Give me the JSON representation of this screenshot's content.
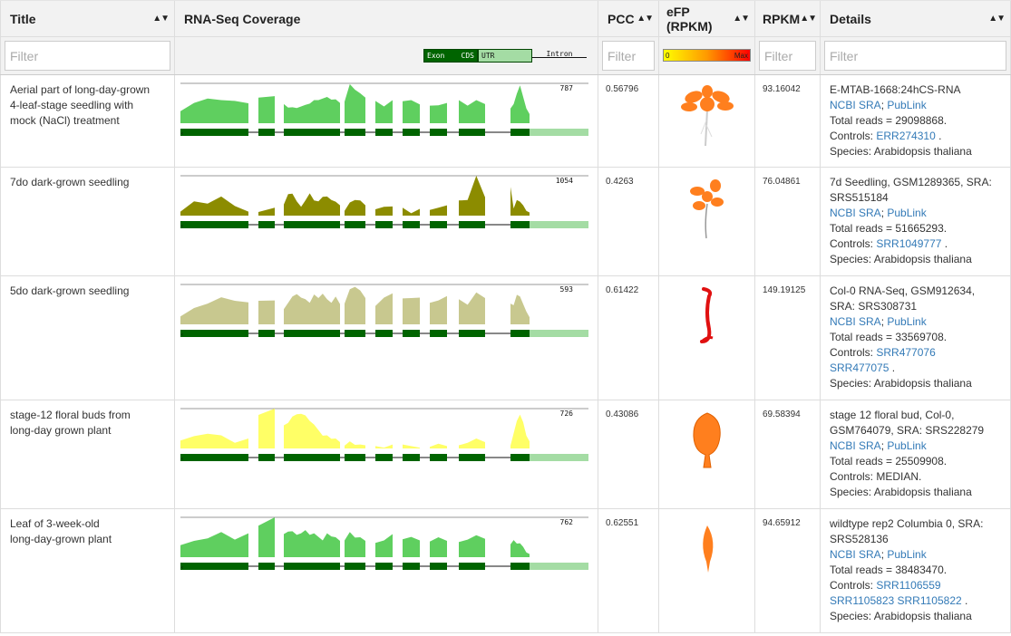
{
  "headers": {
    "title": "Title",
    "coverage": "RNA-Seq Coverage",
    "pcc": "PCC",
    "efp": "eFP (RPKM)",
    "rpkm": "RPKM",
    "details": "Details"
  },
  "filter_placeholder": "Filter",
  "legend": {
    "exon": "Exon",
    "cds": "CDS",
    "utr": "UTR",
    "intron": "Intron"
  },
  "efp_scale": {
    "min": "0",
    "max": "Max"
  },
  "colors": {
    "row1": "#5fcf5f",
    "row2": "#8c8c00",
    "row3": "#c8c88f",
    "row4": "#ffff66",
    "row5": "#5fcf5f",
    "exon": "#006400",
    "utr": "#a4dca4",
    "link": "#337ab7",
    "efp_orange": "#ff7f1e",
    "efp_red": "#e01010"
  },
  "rows": [
    {
      "title_lines": [
        "Aerial part of long-day-grown",
        "4-leaf-stage seedling with",
        "mock (NaCl) treatment"
      ],
      "max_label": "787",
      "pcc": "0.56796",
      "rpkm": "93.16042",
      "efp_icon": "seedling-icon",
      "details": {
        "lines_before": [
          "E-MTAB-1668:24hCS-RNA"
        ],
        "ncbi": "NCBI SRA",
        "publink": "PubLink",
        "total_reads": "Total reads = 29098868.",
        "controls_label": "Controls:",
        "controls": [
          "ERR274310"
        ],
        "controls_text": "",
        "species": "Species: Arabidopsis thaliana"
      }
    },
    {
      "title_lines": [
        "7do dark-grown seedling"
      ],
      "max_label": "1054",
      "pcc": "0.4263",
      "rpkm": "76.04861",
      "efp_icon": "seedling-small-icon",
      "details": {
        "lines_before": [
          "7d Seedling, GSM1289365, SRA:",
          "SRS515184"
        ],
        "ncbi": "NCBI SRA",
        "publink": "PubLink",
        "total_reads": "Total reads = 51665293.",
        "controls_label": "Controls:",
        "controls": [
          "SRR1049777"
        ],
        "controls_text": "",
        "species": "Species: Arabidopsis thaliana"
      }
    },
    {
      "title_lines": [
        "5do dark-grown seedling"
      ],
      "max_label": "593",
      "pcc": "0.61422",
      "rpkm": "149.19125",
      "efp_icon": "etiolated-seedling-icon",
      "details": {
        "lines_before": [
          "Col-0 RNA-Seq, GSM912634,",
          "SRA: SRS308731"
        ],
        "ncbi": "NCBI SRA",
        "publink": "PubLink",
        "total_reads": "Total reads = 33569708.",
        "controls_label": "Controls:",
        "controls": [
          "SRR477076",
          "SRR477075"
        ],
        "controls_text": "",
        "species": "Species: Arabidopsis thaliana"
      }
    },
    {
      "title_lines": [
        "stage-12 floral buds from",
        "long-day grown plant"
      ],
      "max_label": "726",
      "pcc": "0.43086",
      "rpkm": "69.58394",
      "efp_icon": "floral-bud-icon",
      "details": {
        "lines_before": [
          "stage 12 floral bud, Col-0,",
          "GSM764079, SRA: SRS228279"
        ],
        "ncbi": "NCBI SRA",
        "publink": "PubLink",
        "total_reads": "Total reads = 25509908.",
        "controls_label": "Controls: MEDIAN.",
        "controls": [],
        "controls_text": "",
        "species": "Species: Arabidopsis thaliana"
      }
    },
    {
      "title_lines": [
        "Leaf of 3-week-old",
        "long-day-grown plant"
      ],
      "max_label": "762",
      "pcc": "0.62551",
      "rpkm": "94.65912",
      "efp_icon": "leaf-icon",
      "details": {
        "lines_before": [
          "wildtype rep2 Columbia 0, SRA:",
          "SRS528136"
        ],
        "ncbi": "NCBI SRA",
        "publink": "PubLink",
        "total_reads": "Total reads = 38483470.",
        "controls_label": "Controls:",
        "controls": [
          "SRR1106559",
          "SRR1105823",
          "SRR1105822"
        ],
        "controls_text": "",
        "species": "Species: Arabidopsis thaliana"
      }
    }
  ]
}
